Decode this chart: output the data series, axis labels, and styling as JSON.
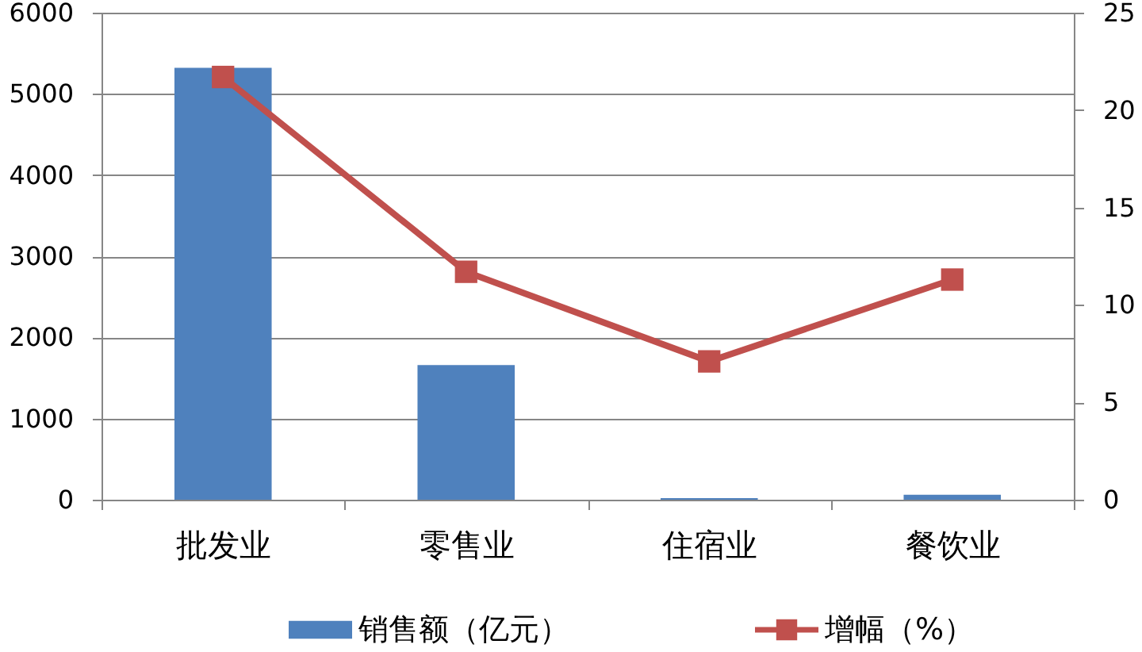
{
  "chart_data": {
    "type": "bar",
    "categories": [
      "批发业",
      "零售业",
      "住宿业",
      "餐饮业"
    ],
    "series": [
      {
        "name": "销售额（亿元）",
        "color": "#4f81bd",
        "values": [
          5320,
          1660,
          20,
          60
        ]
      },
      {
        "name": "增幅（%）",
        "type": "line",
        "axis": "y2",
        "color": "#c0504d",
        "marker": "square",
        "values": [
          21.7,
          11.7,
          7.1,
          11.3
        ]
      }
    ],
    "ylim": [
      0,
      6000
    ],
    "yticks": [
      0,
      1000,
      2000,
      3000,
      4000,
      5000,
      6000
    ],
    "y2lim": [
      0,
      25
    ],
    "y2ticks": [
      0,
      5,
      10,
      15,
      20,
      25
    ],
    "grid": "y",
    "legend": "bottom"
  }
}
